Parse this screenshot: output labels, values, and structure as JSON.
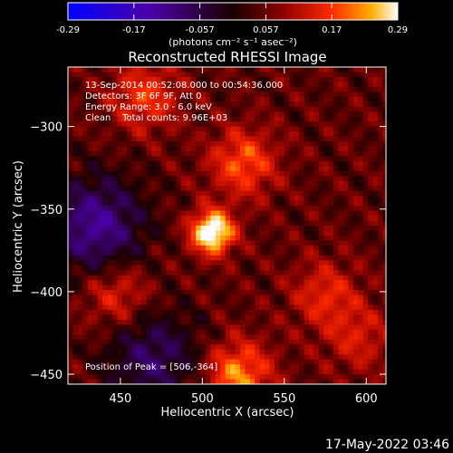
{
  "chart_data": {
    "type": "heatmap",
    "title": "Reconstructed RHESSI Image",
    "xlabel": "Heliocentric X (arcsec)",
    "ylabel": "Heliocentric Y (arcsec)",
    "xlim": [
      418,
      612
    ],
    "ylim": [
      -456,
      -264
    ],
    "xticks": [
      450,
      500,
      550,
      600
    ],
    "yticks": [
      -300,
      -350,
      -400,
      -450
    ],
    "annotations": [
      "13-Sep-2014 00:52:08.000 to 00:54:36.000",
      "Detectors: 3F 6F 9F, Att 0",
      "Energy Range: 3.0 - 6.0 keV",
      "Clean    Total counts: 9.96E+03"
    ],
    "peak_label": "Position of Peak = [506,-364]",
    "peak": {
      "x": 506,
      "y": -364,
      "value": 0.29
    },
    "secondary_sources": [
      {
        "x": 522,
        "y": -450,
        "value": 0.17
      },
      {
        "x": 525,
        "y": -322,
        "value": 0.14
      },
      {
        "x": 465,
        "y": -282,
        "value": 0.12
      },
      {
        "x": 448,
        "y": -402,
        "value": 0.1
      },
      {
        "x": 575,
        "y": -402,
        "value": 0.1
      },
      {
        "x": 595,
        "y": -428,
        "value": 0.08
      }
    ],
    "negative_regions": [
      {
        "x": 435,
        "y": -360,
        "value": -0.17
      },
      {
        "x": 470,
        "y": -440,
        "value": -0.12
      }
    ],
    "colorbar": {
      "ticks": [
        "-0.29",
        "-0.17",
        "-0.057",
        "0.057",
        "0.17",
        "0.29"
      ],
      "range": [
        -0.29,
        0.29
      ],
      "unit_label": "(photons cm⁻² s⁻¹ asec⁻²)"
    }
  },
  "timestamp": "17-May-2022 03:46"
}
